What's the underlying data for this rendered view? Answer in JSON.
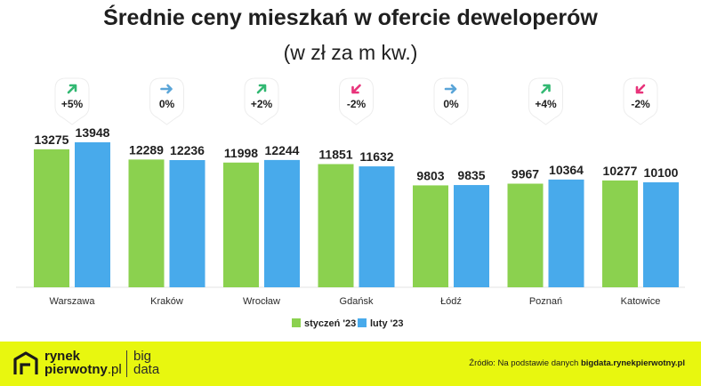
{
  "header": {
    "title": "Średnie ceny mieszkań w ofercie deweloperów",
    "subtitle": "(w zł za m kw.)"
  },
  "chart_data": {
    "type": "bar",
    "categories": [
      "Warszawa",
      "Kraków",
      "Wrocław",
      "Gdańsk",
      "Łódź",
      "Poznań",
      "Katowice"
    ],
    "series": [
      {
        "name": "styczeń '23",
        "values": [
          13275,
          12289,
          11998,
          11851,
          9803,
          9967,
          10277
        ]
      },
      {
        "name": "luty '23",
        "values": [
          13948,
          12236,
          12244,
          11632,
          9835,
          10364,
          10100
        ]
      }
    ],
    "changes": [
      {
        "text": "+5%",
        "direction": "up"
      },
      {
        "text": "0%",
        "direction": "flat"
      },
      {
        "text": "+2%",
        "direction": "up"
      },
      {
        "text": "-2%",
        "direction": "down"
      },
      {
        "text": "0%",
        "direction": "flat"
      },
      {
        "text": "+4%",
        "direction": "up"
      },
      {
        "text": "-2%",
        "direction": "down"
      }
    ],
    "ylim": [
      0,
      16000
    ],
    "grid": false,
    "legend": "bottom-center",
    "colors": {
      "series1": "#8bd14f",
      "series2": "#48aaeb",
      "up": "#32b872",
      "flat": "#5aa5d8",
      "down": "#e8337a"
    }
  },
  "footer": {
    "brand_line1": "rynek",
    "brand_line2_bold": "pierwotny",
    "brand_line2_light": ".pl",
    "bigdata_line1": "big",
    "bigdata_line2": "data",
    "source_prefix": "Źródło: Na podstawie danych ",
    "source_link": "bigdata.rynekpierwotny.pl"
  }
}
